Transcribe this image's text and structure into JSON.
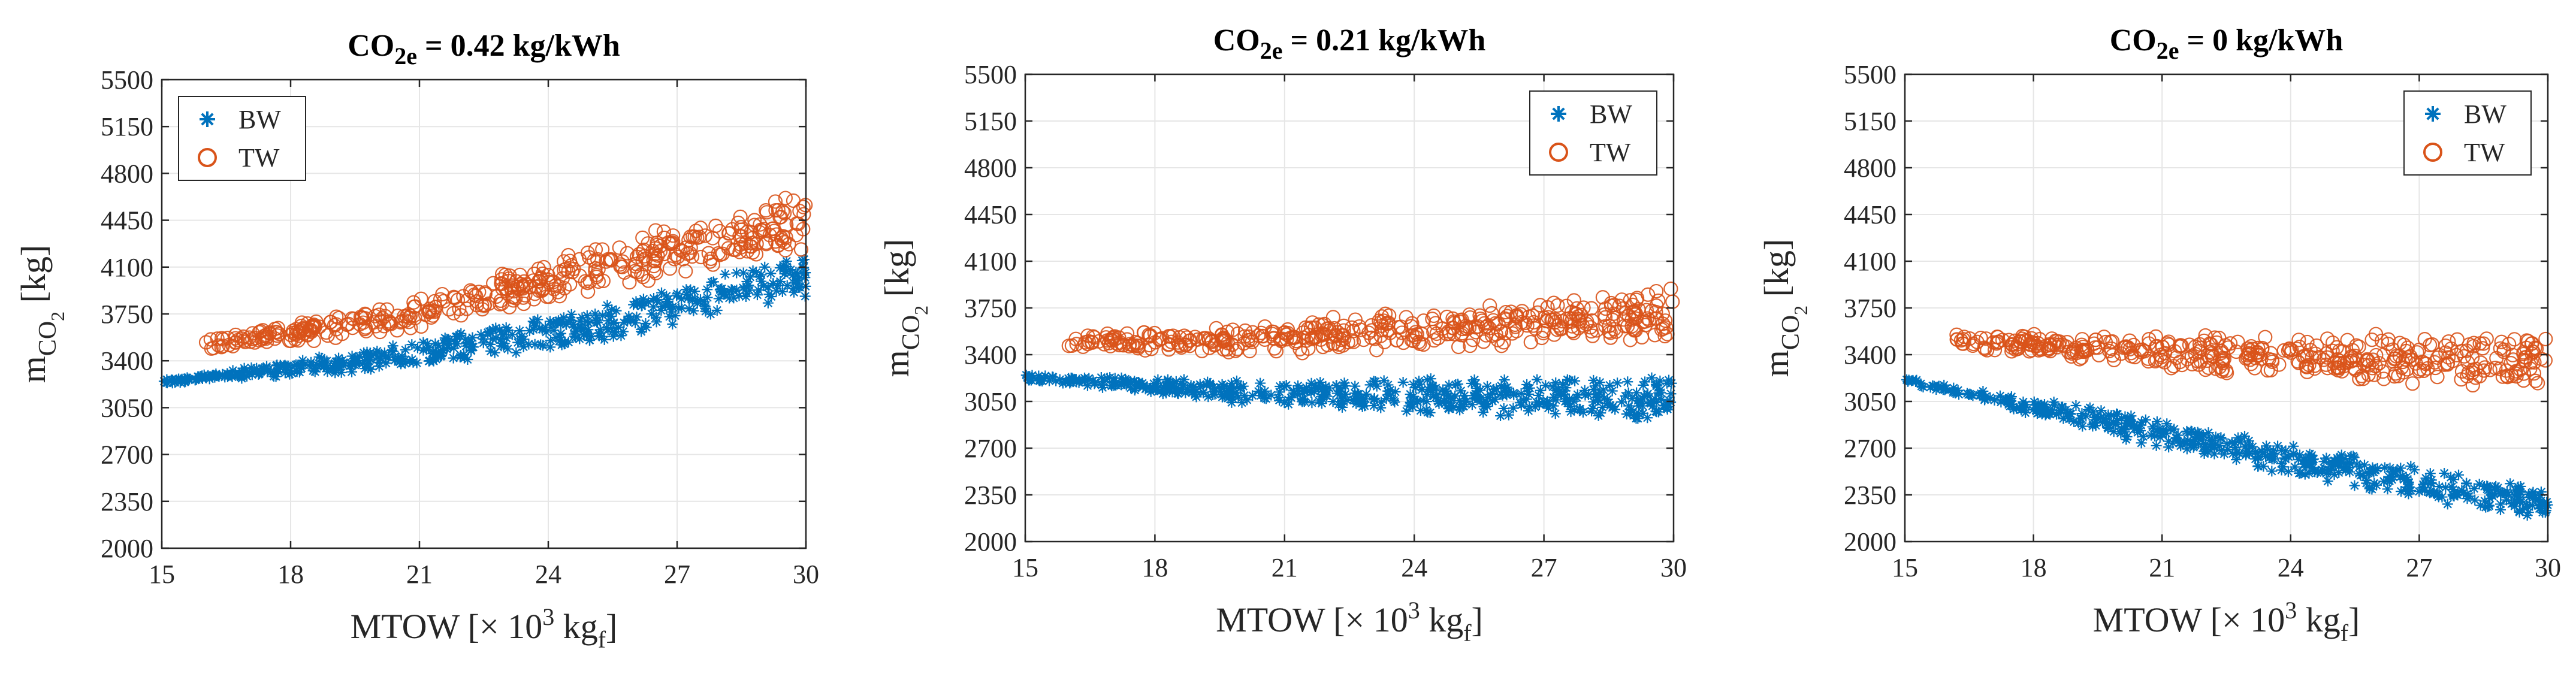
{
  "chart_data": [
    {
      "type": "scatter",
      "title": "CO2e = 0.42 kg/kWh",
      "title_parts": {
        "base": "CO",
        "sub": "2e",
        "rest": " = 0.42 kg/kWh"
      },
      "xlabel": "MTOW [× 10^3 kgf]",
      "xlabel_parts": {
        "pre": "MTOW [× 10",
        "sup": "3",
        "mid": " kg",
        "sub": "f",
        "post": "]"
      },
      "ylabel": "mCO2 [kg]",
      "ylabel_parts": {
        "base": "m",
        "sub": "CO",
        "subsub": "2",
        "post": " [kg]"
      },
      "xlim": [
        15,
        30
      ],
      "ylim": [
        2000,
        5500
      ],
      "xticks": [
        "15",
        "18",
        "21",
        "24",
        "27",
        "30"
      ],
      "yticks": [
        "2000",
        "2350",
        "2700",
        "3050",
        "3400",
        "3750",
        "4100",
        "4450",
        "4800",
        "5150",
        "5500"
      ],
      "grid": true,
      "legend": {
        "position": "top-left",
        "entries": [
          "BW",
          "TW"
        ]
      },
      "series": [
        {
          "name": "BW",
          "marker": "asterisk",
          "color": "#0072BD",
          "trend": {
            "x": [
              15,
              20,
              25,
              30
            ],
            "y": [
              3240,
              3470,
              3760,
              4170
            ]
          },
          "band": {
            "x": [
              15,
              20,
              25,
              30
            ],
            "low": [
              0,
              120,
              220,
              260
            ]
          },
          "jitter": 45
        },
        {
          "name": "TW",
          "marker": "circle",
          "color": "#D95319",
          "trend": {
            "x": [
              16,
              20,
              25,
              30
            ],
            "y": [
              3520,
              3750,
              4180,
              4600
            ]
          },
          "band": {
            "x": [
              16,
              20,
              25,
              30
            ],
            "low": [
              0,
              120,
              220,
              280
            ]
          },
          "jitter": 90
        }
      ]
    },
    {
      "type": "scatter",
      "title": "CO2e = 0.21 kg/kWh",
      "title_parts": {
        "base": "CO",
        "sub": "2e",
        "rest": " = 0.21 kg/kWh"
      },
      "xlabel": "MTOW [× 10^3 kgf]",
      "xlabel_parts": {
        "pre": "MTOW [× 10",
        "sup": "3",
        "mid": " kg",
        "sub": "f",
        "post": "]"
      },
      "ylabel": "mCO2 [kg]",
      "ylabel_parts": {
        "base": "m",
        "sub": "CO",
        "subsub": "2",
        "post": " [kg]"
      },
      "xlim": [
        15,
        30
      ],
      "ylim": [
        2000,
        5500
      ],
      "xticks": [
        "15",
        "18",
        "21",
        "24",
        "27",
        "30"
      ],
      "yticks": [
        "2000",
        "2350",
        "2700",
        "3050",
        "3400",
        "3750",
        "4100",
        "4450",
        "4800",
        "5150",
        "5500"
      ],
      "grid": true,
      "legend": {
        "position": "top-right",
        "entries": [
          "BW",
          "TW"
        ]
      },
      "series": [
        {
          "name": "BW",
          "marker": "asterisk",
          "color": "#0072BD",
          "trend": {
            "x": [
              15,
              20,
              25,
              30
            ],
            "y": [
              3230,
              3190,
              3200,
              3210
            ]
          },
          "band": {
            "x": [
              15,
              20,
              25,
              30
            ],
            "low": [
              0,
              140,
              220,
              280
            ]
          },
          "jitter": 45
        },
        {
          "name": "TW",
          "marker": "circle",
          "color": "#D95319",
          "trend": {
            "x": [
              16,
              20,
              25,
              30
            ],
            "y": [
              3500,
              3560,
              3690,
              3830
            ]
          },
          "band": {
            "x": [
              16,
              20,
              25,
              30
            ],
            "low": [
              0,
              100,
              180,
              230
            ]
          },
          "jitter": 110
        }
      ]
    },
    {
      "type": "scatter",
      "title": "CO2e = 0 kg/kWh",
      "title_parts": {
        "base": "CO",
        "sub": "2e",
        "rest": " = 0 kg/kWh"
      },
      "xlabel": "MTOW [× 10^3 kgf]",
      "xlabel_parts": {
        "pre": "MTOW [× 10",
        "sup": "3",
        "mid": " kg",
        "sub": "f",
        "post": "]"
      },
      "ylabel": "mCO2 [kg]",
      "ylabel_parts": {
        "base": "m",
        "sub": "CO",
        "subsub": "2",
        "post": " [kg]"
      },
      "xlim": [
        15,
        30
      ],
      "ylim": [
        2000,
        5500
      ],
      "xticks": [
        "15",
        "18",
        "21",
        "24",
        "27",
        "30"
      ],
      "yticks": [
        "2000",
        "2350",
        "2700",
        "3050",
        "3400",
        "3750",
        "4100",
        "4450",
        "4800",
        "5150",
        "5500"
      ],
      "grid": true,
      "legend": {
        "position": "top-right",
        "entries": [
          "BW",
          "TW"
        ]
      },
      "series": [
        {
          "name": "BW",
          "marker": "asterisk",
          "color": "#0072BD",
          "trend": {
            "x": [
              15,
              20,
              25,
              30
            ],
            "y": [
              3210,
              2950,
              2650,
              2350
            ]
          },
          "band": {
            "x": [
              15,
              20,
              25,
              30
            ],
            "low": [
              0,
              150,
              200,
              160
            ]
          },
          "jitter": 45
        },
        {
          "name": "TW",
          "marker": "circle",
          "color": "#D95319",
          "trend": {
            "x": [
              16,
              20,
              25,
              30
            ],
            "y": [
              3510,
              3500,
              3470,
              3460
            ]
          },
          "band": {
            "x": [
              16,
              20,
              25,
              30
            ],
            "low": [
              0,
              120,
              200,
              220
            ]
          },
          "jitter": 110
        }
      ]
    }
  ]
}
